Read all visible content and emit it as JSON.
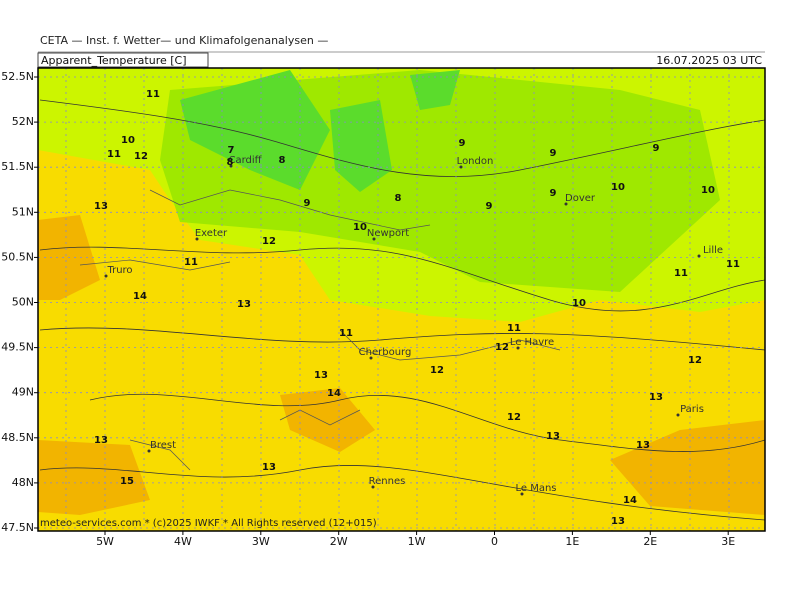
{
  "header": {
    "title": "CETA — Inst. f. Wetter— und Klimafolgenanalysen —",
    "field": "Apparent_Temperature [C]",
    "valid_time": "16.07.2025 03 UTC"
  },
  "axes": {
    "lat_labels": [
      "52.5N",
      "52N",
      "51.5N",
      "51N",
      "50.5N",
      "50N",
      "49.5N",
      "49N",
      "48.5N",
      "48N",
      "47.5N"
    ],
    "lon_labels": [
      "5W",
      "4W",
      "3W",
      "2W",
      "1W",
      "0",
      "1E",
      "2E",
      "3E"
    ]
  },
  "cities": [
    "Cardiff",
    "London",
    "Dover",
    "Exeter",
    "Newport",
    "Lille",
    "Truro",
    "Cherbourg",
    "Le Havre",
    "Paris",
    "Brest",
    "Rennes",
    "Le Mans"
  ],
  "contour_labels": [
    11,
    10,
    11,
    12,
    7,
    8,
    8,
    13,
    9,
    8,
    9,
    9,
    9,
    10,
    9,
    9,
    10,
    10,
    12,
    11,
    14,
    13,
    11,
    11,
    10,
    11,
    11,
    12,
    12,
    12,
    13,
    14,
    13,
    12,
    13,
    13,
    13,
    13,
    15,
    14,
    13
  ],
  "footer": "meteo-services.com * (c)2025 IWKF * All Rights reserved (12+015)"
}
